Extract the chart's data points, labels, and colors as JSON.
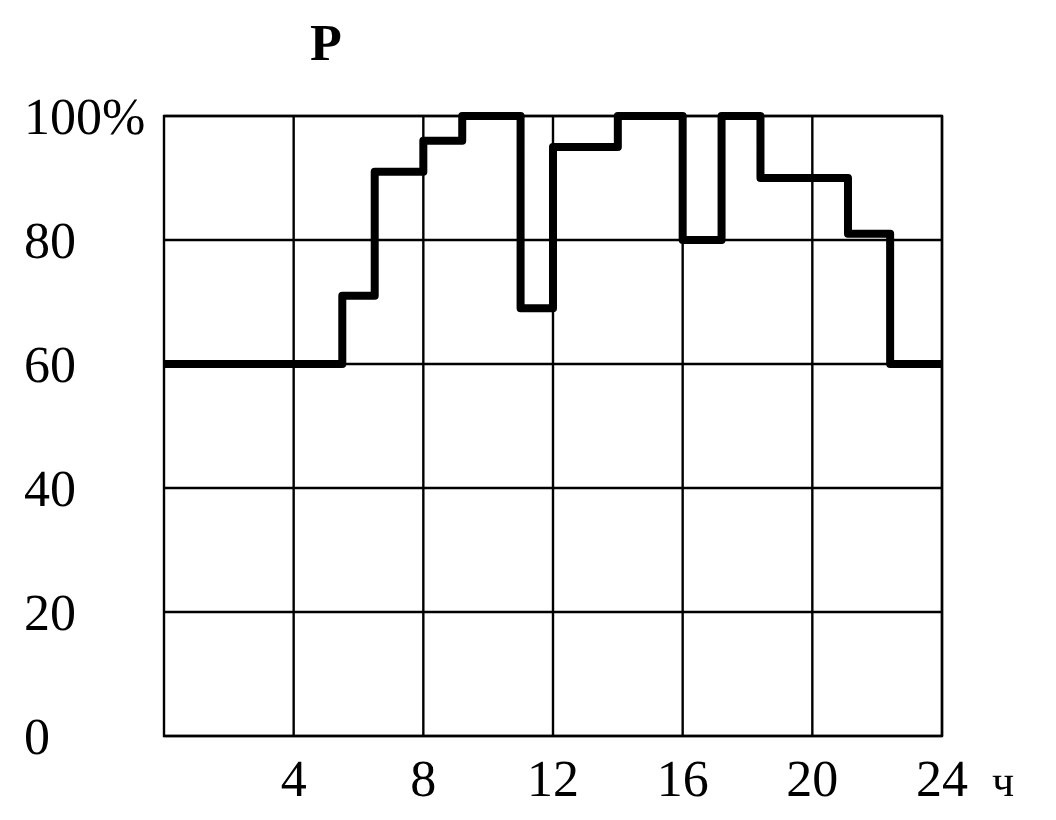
{
  "chart_data": {
    "type": "step",
    "title": "P",
    "xlabel": "ч",
    "x": [
      0,
      5.5,
      6.5,
      8,
      9.2,
      11,
      12,
      14,
      16,
      17.2,
      18.4,
      21.1,
      22.4,
      24
    ],
    "values": [
      60,
      71,
      91,
      96,
      100,
      69,
      95,
      100,
      80,
      100,
      90,
      81,
      60,
      60
    ],
    "color": "#000000",
    "xlim": [
      0,
      24
    ],
    "xticks": [
      4,
      8,
      12,
      16,
      20,
      24
    ],
    "ylim": [
      0,
      100
    ],
    "yticks": [
      0,
      20,
      40,
      60,
      80,
      {
        "value": 100,
        "label": "100%"
      }
    ],
    "grid": true
  }
}
